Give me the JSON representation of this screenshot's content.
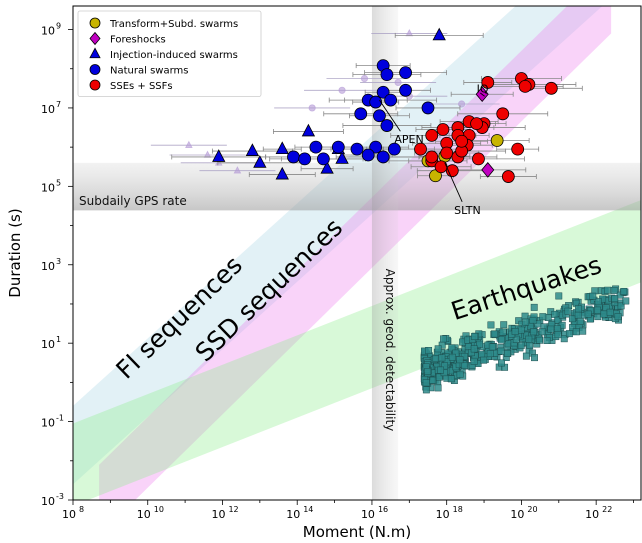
{
  "chart_data": {
    "type": "scatter",
    "xlabel": "Moment (N.m)",
    "ylabel": "Duration (s)",
    "xscale": "log",
    "yscale": "log",
    "xlim_log10": [
      8,
      23.2
    ],
    "ylim_log10": [
      -3,
      9.6
    ],
    "x_ticks": [
      {
        "exp": 8,
        "label": "10^8"
      },
      {
        "exp": 10,
        "label": "10^10"
      },
      {
        "exp": 12,
        "label": "10^12"
      },
      {
        "exp": 14,
        "label": "10^14"
      },
      {
        "exp": 16,
        "label": "10^16"
      },
      {
        "exp": 18,
        "label": "10^18"
      },
      {
        "exp": 20,
        "label": "10^20"
      },
      {
        "exp": 22,
        "label": "10^22"
      }
    ],
    "y_ticks": [
      {
        "exp": -3,
        "label": "10^-3"
      },
      {
        "exp": -1,
        "label": "10^-1"
      },
      {
        "exp": 1,
        "label": "10^1"
      },
      {
        "exp": 3,
        "label": "10^3"
      },
      {
        "exp": 5,
        "label": "10^5"
      },
      {
        "exp": 7,
        "label": "10^7"
      },
      {
        "exp": 9,
        "label": "10^9"
      }
    ],
    "legend_position": "top-left",
    "grid": false,
    "bands": [
      {
        "label": "FI sequences",
        "color": "#add8e6",
        "from": [
          8,
          -1.6
        ],
        "to": [
          22.4,
          10.8
        ],
        "half_width_log10": 1.0
      },
      {
        "label": "SSD sequences",
        "color": "#ee82ee",
        "from": [
          8.7,
          -3.0
        ],
        "to": [
          22.4,
          9.8
        ],
        "half_width_log10": 0.9
      },
      {
        "label": "Earthquakes",
        "color": "#90ee90",
        "from": [
          8,
          -2.1
        ],
        "to": [
          23.2,
          3.6
        ],
        "half_width_log10": 1.05
      }
    ],
    "regions": [
      {
        "label": "Subdaily GPS rate",
        "type": "horizontal",
        "below_log10": 4.4
      },
      {
        "label": "Approx. geod. detectability",
        "type": "vertical",
        "at_log10": 16.4
      }
    ],
    "annotations": [
      {
        "text": "IQ",
        "x": 18.8,
        "y": 7.4
      },
      {
        "text": "APEN",
        "x": 16.6,
        "y": 6.1
      },
      {
        "text": "SLTN",
        "x": 18.2,
        "y": 4.3
      }
    ],
    "series": [
      {
        "name": "Transform+Subd. swarms",
        "marker": "circle",
        "color": "#c8b400",
        "points": [
          [
            17.7,
            5.27
          ],
          [
            17.95,
            5.77
          ],
          [
            19.35,
            6.17
          ],
          [
            17.5,
            5.65
          ]
        ]
      },
      {
        "name": "Foreshocks",
        "marker": "diamond",
        "color": "#c000c0",
        "points": [
          [
            18.95,
            7.35
          ],
          [
            19.1,
            5.42
          ]
        ]
      },
      {
        "name": "Injection-induced swarms",
        "marker": "triangle",
        "color": "#0000dd",
        "points": [
          [
            17.8,
            8.85
          ],
          [
            15.2,
            5.7
          ],
          [
            15.1,
            5.95
          ],
          [
            14.3,
            6.4
          ],
          [
            13.0,
            5.6
          ],
          [
            13.6,
            5.95
          ],
          [
            14.8,
            5.45
          ],
          [
            13.6,
            5.3
          ],
          [
            12.8,
            5.9
          ],
          [
            11.9,
            5.75
          ]
        ]
      },
      {
        "name": "Natural swarms",
        "marker": "circle",
        "color": "#0000dd",
        "points": [
          [
            16.3,
            8.08
          ],
          [
            16.4,
            7.85
          ],
          [
            16.9,
            7.9
          ],
          [
            16.3,
            7.4
          ],
          [
            16.9,
            7.45
          ],
          [
            17.5,
            7.0
          ],
          [
            15.9,
            7.2
          ],
          [
            16.5,
            7.2
          ],
          [
            16.1,
            7.15
          ],
          [
            16.2,
            6.8
          ],
          [
            15.7,
            6.85
          ],
          [
            16.4,
            6.55
          ],
          [
            14.5,
            6.0
          ],
          [
            13.9,
            5.75
          ],
          [
            14.2,
            5.7
          ],
          [
            14.7,
            5.7
          ],
          [
            15.1,
            6.0
          ],
          [
            15.6,
            5.95
          ],
          [
            16.1,
            6.0
          ],
          [
            16.6,
            5.95
          ],
          [
            16.3,
            5.75
          ],
          [
            15.9,
            5.8
          ]
        ]
      },
      {
        "name": "SSEs + SSFs",
        "marker": "circle",
        "color": "#ee0000",
        "points": [
          [
            20.0,
            7.75
          ],
          [
            20.2,
            7.6
          ],
          [
            19.1,
            7.65
          ],
          [
            20.8,
            7.5
          ],
          [
            20.1,
            7.55
          ],
          [
            19.5,
            6.85
          ],
          [
            19.0,
            6.6
          ],
          [
            18.6,
            6.65
          ],
          [
            18.3,
            6.5
          ],
          [
            18.95,
            6.5
          ],
          [
            18.6,
            6.3
          ],
          [
            17.9,
            6.45
          ],
          [
            18.0,
            6.1
          ],
          [
            17.6,
            6.3
          ],
          [
            18.3,
            6.3
          ],
          [
            18.55,
            6.05
          ],
          [
            18.0,
            5.85
          ],
          [
            18.3,
            5.75
          ],
          [
            18.85,
            5.7
          ],
          [
            17.6,
            5.65
          ],
          [
            17.85,
            5.5
          ],
          [
            17.3,
            5.95
          ],
          [
            18.4,
            5.9
          ],
          [
            19.9,
            5.95
          ],
          [
            19.65,
            5.25
          ],
          [
            18.15,
            5.4
          ],
          [
            17.6,
            5.75
          ],
          [
            18.8,
            6.6
          ],
          [
            18.4,
            6.15
          ]
        ]
      }
    ],
    "ghost_series": [
      {
        "note": "faded duplicates",
        "marker": "triangle",
        "points": [
          [
            17.0,
            8.9
          ],
          [
            11.1,
            6.05
          ],
          [
            11.6,
            5.8
          ],
          [
            12.4,
            5.4
          ],
          [
            11.9,
            5.6
          ]
        ]
      },
      {
        "note": "faded duplicates",
        "marker": "circle",
        "points": [
          [
            15.2,
            7.45
          ],
          [
            14.4,
            7.0
          ],
          [
            15.8,
            7.75
          ],
          [
            16.7,
            7.65
          ],
          [
            17.0,
            7.3
          ],
          [
            18.4,
            7.1
          ]
        ]
      }
    ],
    "earthquakes": {
      "name": "Earthquakes",
      "marker": "square",
      "color": "#2e8b8b",
      "x_range_log10": [
        17.4,
        22.8
      ],
      "y_center_at_x_17_5": 0.35,
      "slope": 0.33,
      "spread_log10": 0.45,
      "count": 520
    }
  }
}
